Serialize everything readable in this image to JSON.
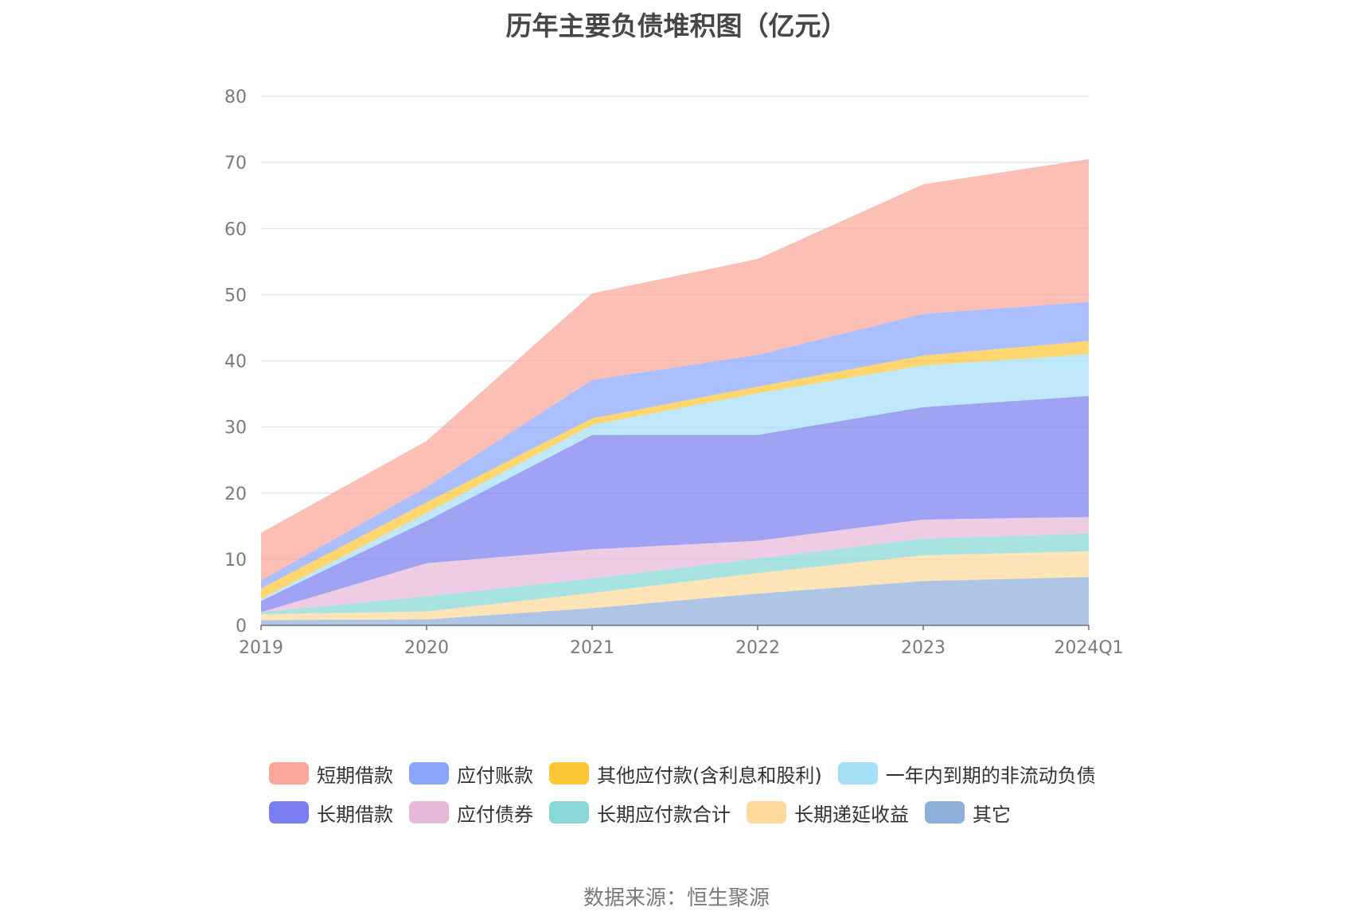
{
  "chart_data": {
    "type": "area",
    "stacked": true,
    "title": "历年主要负债堆积图（亿元）",
    "x": [
      "2019",
      "2020",
      "2021",
      "2022",
      "2023",
      "2024Q1"
    ],
    "ylim": [
      0,
      80
    ],
    "yticks": [
      0,
      10,
      20,
      30,
      40,
      50,
      60,
      70,
      80
    ],
    "grid": true,
    "legend_position": "bottom",
    "series": [
      {
        "name": "其它",
        "color": "#8fafdb",
        "values": [
          0.8,
          0.9,
          2.6,
          4.8,
          6.7,
          7.3
        ]
      },
      {
        "name": "长期递延收益",
        "color": "#ffd99b",
        "values": [
          0.9,
          1.2,
          2.3,
          3.1,
          3.9,
          3.9
        ]
      },
      {
        "name": "长期应付款合计",
        "color": "#88d8d6",
        "values": [
          0.3,
          2.3,
          2.2,
          2.2,
          2.5,
          2.7
        ]
      },
      {
        "name": "应付债券",
        "color": "#e8b8d8",
        "values": [
          0.0,
          5.0,
          4.4,
          2.7,
          2.9,
          2.5
        ]
      },
      {
        "name": "长期借款",
        "color": "#7b7ef0",
        "values": [
          1.7,
          6.4,
          17.3,
          16.0,
          17.0,
          18.3
        ]
      },
      {
        "name": "一年内到期的非流动负债",
        "color": "#a6e0f8",
        "values": [
          0.3,
          1.2,
          1.5,
          6.3,
          6.3,
          6.3
        ]
      },
      {
        "name": "其他应付款(含利息和股利)",
        "color": "#ffc637",
        "values": [
          1.6,
          1.6,
          1.0,
          1.0,
          1.5,
          2.0
        ]
      },
      {
        "name": "应付账款",
        "color": "#8aa5fc",
        "values": [
          1.2,
          2.3,
          5.8,
          4.8,
          6.3,
          5.9
        ]
      },
      {
        "name": "短期借款",
        "color": "#fba69a",
        "values": [
          7.2,
          7.0,
          13.1,
          14.5,
          19.6,
          21.6
        ]
      }
    ]
  },
  "legend": {
    "row1": [
      {
        "label": "短期借款",
        "color": "#fba69a"
      },
      {
        "label": "应付账款",
        "color": "#8aa5fc"
      },
      {
        "label": "其他应付款(含利息和股利)",
        "color": "#ffc637"
      },
      {
        "label": "一年内到期的非流动负债",
        "color": "#a6e0f8"
      }
    ],
    "row2": [
      {
        "label": "长期借款",
        "color": "#7b7ef0"
      },
      {
        "label": "应付债券",
        "color": "#e8b8d8"
      },
      {
        "label": "长期应付款合计",
        "color": "#88d8d6"
      },
      {
        "label": "长期递延收益",
        "color": "#ffd99b"
      },
      {
        "label": "其它",
        "color": "#8fafdb"
      }
    ]
  },
  "source": "数据来源：恒生聚源"
}
